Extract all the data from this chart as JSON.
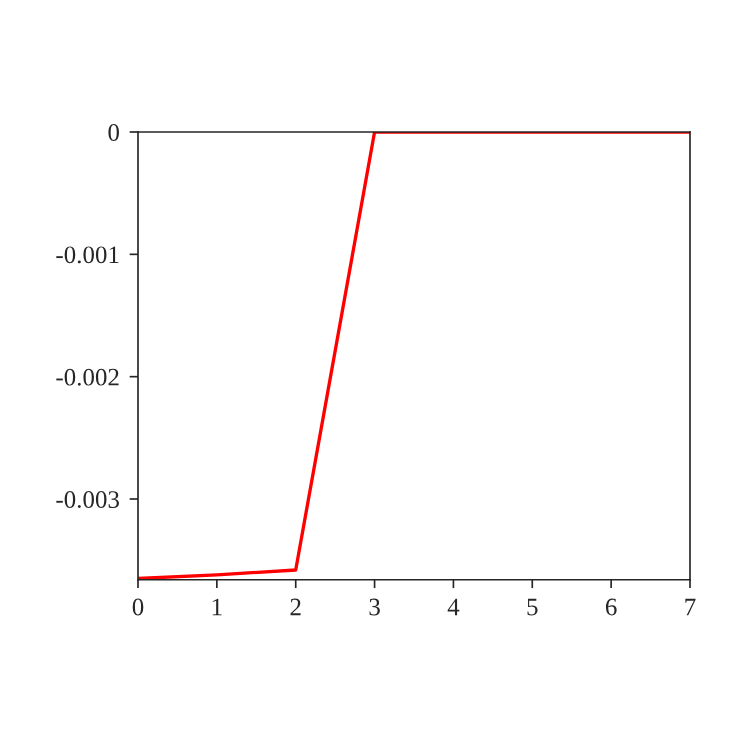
{
  "chart_data": {
    "type": "line",
    "x": [
      0,
      1,
      2,
      3,
      4,
      5,
      6,
      7
    ],
    "series": [
      {
        "color": "#ff0000",
        "values": [
          -0.00365,
          -0.00362,
          -0.00358,
          0,
          0,
          0,
          0,
          0
        ]
      }
    ],
    "xlim": [
      0,
      7
    ],
    "xticks": [
      0,
      1,
      2,
      3,
      4,
      5,
      6,
      7
    ],
    "ylim": [
      -0.00366,
      0
    ],
    "yticks": [
      -0.003,
      -0.002,
      -0.001,
      0
    ],
    "grid": false,
    "legend": false
  }
}
